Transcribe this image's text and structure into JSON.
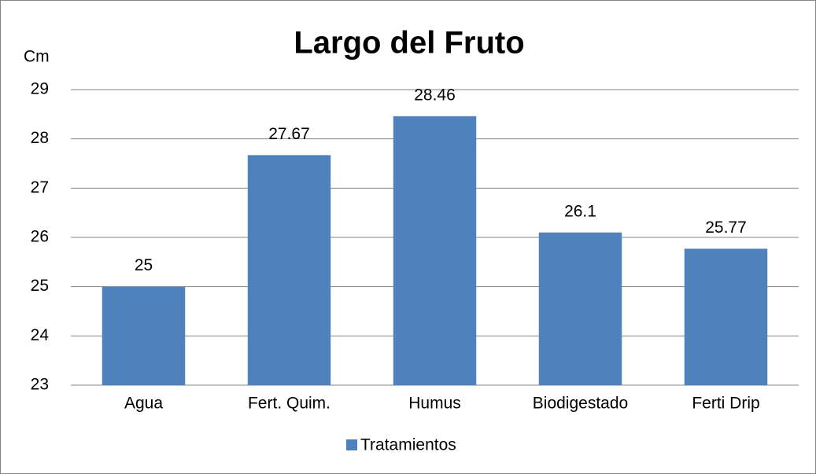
{
  "chart_data": {
    "type": "bar",
    "title": "Largo del Fruto",
    "y_label": "Cm",
    "categories": [
      "Agua",
      "Fert. Quim.",
      "Humus",
      "Biodigestado",
      "Ferti Drip"
    ],
    "series": [
      {
        "name": "Tratamientos",
        "color": "#4f81bd",
        "values": [
          25,
          27.67,
          28.46,
          26.1,
          25.77
        ]
      }
    ],
    "ylim": [
      23,
      29
    ],
    "yticks": [
      23,
      24,
      25,
      26,
      27,
      28,
      29
    ],
    "grid": true,
    "legend": "bottom",
    "data_labels": true
  }
}
